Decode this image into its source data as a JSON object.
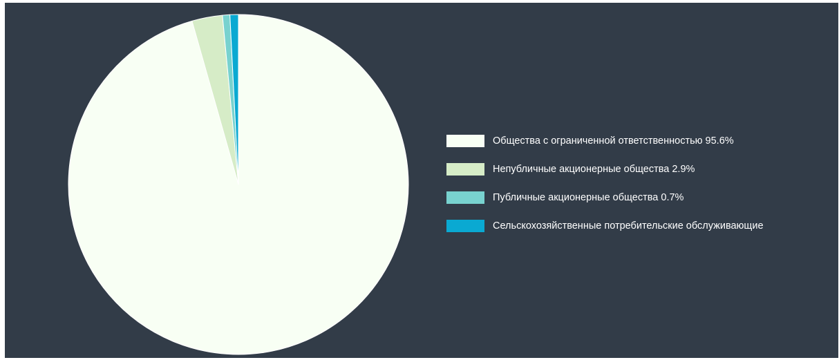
{
  "chart_data": {
    "type": "pie",
    "slices": [
      {
        "label": "Общества с ограниченной ответственностью 95.6%",
        "value": 95.6,
        "color": "#f8fff4"
      },
      {
        "label": "Непубличные акционерные общества 2.9%",
        "value": 2.9,
        "color": "#d6ecc7"
      },
      {
        "label": "Публичные акционерные общества 0.7%",
        "value": 0.7,
        "color": "#78d2cf"
      },
      {
        "label": "Сельскохозяйственные потребительские обслуживающие",
        "value": 0.8,
        "color": "#0aa9d2"
      }
    ],
    "legend_position": "right",
    "start_angle": "top",
    "direction": "clockwise"
  },
  "colors": {
    "background": "#323c48",
    "slice_border": "#ffffff",
    "legend_text": "#ffffff"
  }
}
